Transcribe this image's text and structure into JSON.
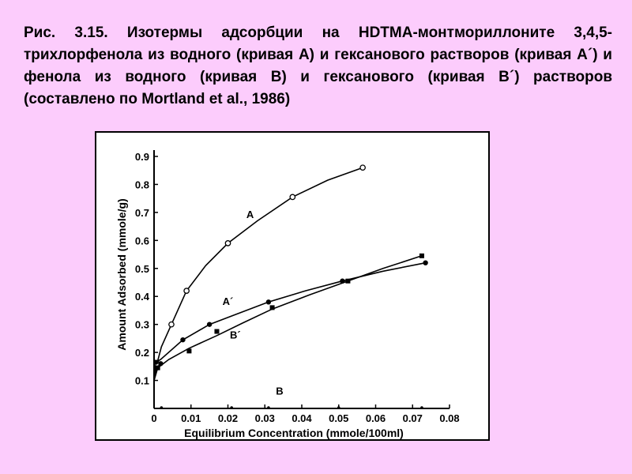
{
  "caption": "Рис. 3.15. Изотермы адсорбции на HDTMA-монтмориллоните 3,4,5-трихлорфенола из водного (кривая А) и гексанового растворов (кривая А´) и фенола из водного (кривая В) и гексанового (кривая В´) растворов (составлено по Mortland et al., 1986)",
  "chart_data": {
    "type": "scatter",
    "title": "",
    "xlabel": "Equilibrium Concentration (mmole/100ml)",
    "ylabel": "Amount Adsorbed (mmole/g)",
    "xlim": [
      0,
      0.08
    ],
    "ylim": [
      0,
      0.9
    ],
    "x_ticks": [
      "0",
      "0.01",
      "0.02",
      "0.03",
      "0.04",
      "0.05",
      "0.06",
      "0.07",
      "0.08"
    ],
    "y_ticks": [
      "0.1",
      "0.2",
      "0.3",
      "0.4",
      "0.5",
      "0.6",
      "0.7",
      "0.8",
      "0.9"
    ],
    "grid": false,
    "series": [
      {
        "name": "A",
        "marker": "open-circle",
        "points": [
          [
            0.0008,
            0.16
          ],
          [
            0.0047,
            0.3
          ],
          [
            0.0088,
            0.42
          ],
          [
            0.02,
            0.59
          ],
          [
            0.0375,
            0.755
          ],
          [
            0.0565,
            0.86
          ]
        ],
        "curve": [
          [
            0,
            0.1
          ],
          [
            0.0008,
            0.16
          ],
          [
            0.002,
            0.22
          ],
          [
            0.0047,
            0.3
          ],
          [
            0.0088,
            0.42
          ],
          [
            0.014,
            0.51
          ],
          [
            0.02,
            0.59
          ],
          [
            0.028,
            0.67
          ],
          [
            0.0375,
            0.755
          ],
          [
            0.047,
            0.815
          ],
          [
            0.0565,
            0.86
          ]
        ]
      },
      {
        "name": "A´",
        "marker": "filled-circle",
        "points": [
          [
            0.0005,
            0.165
          ],
          [
            0.0018,
            0.16
          ],
          [
            0.0078,
            0.245
          ],
          [
            0.015,
            0.3
          ],
          [
            0.031,
            0.38
          ],
          [
            0.051,
            0.455
          ],
          [
            0.0735,
            0.52
          ]
        ],
        "curve": [
          [
            0,
            0.12
          ],
          [
            0.0005,
            0.165
          ],
          [
            0.0018,
            0.175
          ],
          [
            0.0078,
            0.245
          ],
          [
            0.015,
            0.3
          ],
          [
            0.022,
            0.335
          ],
          [
            0.031,
            0.38
          ],
          [
            0.041,
            0.42
          ],
          [
            0.051,
            0.455
          ],
          [
            0.062,
            0.49
          ],
          [
            0.0735,
            0.52
          ]
        ]
      },
      {
        "name": "B´",
        "marker": "filled-square",
        "points": [
          [
            0.001,
            0.145
          ],
          [
            0.0095,
            0.205
          ],
          [
            0.017,
            0.275
          ],
          [
            0.032,
            0.36
          ],
          [
            0.0525,
            0.455
          ],
          [
            0.0725,
            0.545
          ]
        ],
        "curve": [
          [
            0,
            0.1
          ],
          [
            0.001,
            0.145
          ],
          [
            0.004,
            0.175
          ],
          [
            0.0095,
            0.215
          ],
          [
            0.017,
            0.26
          ],
          [
            0.024,
            0.305
          ],
          [
            0.032,
            0.355
          ],
          [
            0.042,
            0.405
          ],
          [
            0.0525,
            0.455
          ],
          [
            0.062,
            0.5
          ],
          [
            0.0725,
            0.545
          ]
        ]
      },
      {
        "name": "B",
        "marker": "small-dot",
        "points": [
          [
            0.002,
            0.0
          ],
          [
            0.021,
            0.0
          ],
          [
            0.031,
            0.0
          ],
          [
            0.05,
            0.0
          ],
          [
            0.0725,
            0.0
          ]
        ]
      }
    ],
    "labels": [
      {
        "text": "A",
        "x": 0.026,
        "y": 0.68
      },
      {
        "text": "A´",
        "x": 0.02,
        "y": 0.37
      },
      {
        "text": "B´",
        "x": 0.022,
        "y": 0.25
      },
      {
        "text": "B",
        "x": 0.034,
        "y": 0.05
      }
    ]
  }
}
